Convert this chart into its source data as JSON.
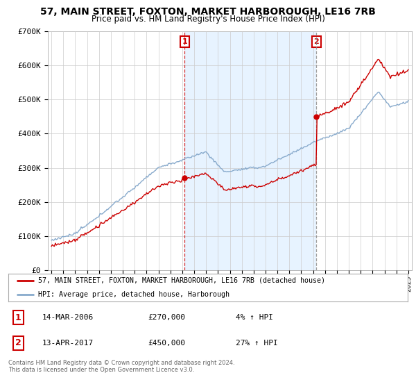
{
  "title": "57, MAIN STREET, FOXTON, MARKET HARBOROUGH, LE16 7RB",
  "subtitle": "Price paid vs. HM Land Registry's House Price Index (HPI)",
  "ylim": [
    0,
    700000
  ],
  "yticks": [
    0,
    100000,
    200000,
    300000,
    400000,
    500000,
    600000,
    700000
  ],
  "ytick_labels": [
    "£0",
    "£100K",
    "£200K",
    "£300K",
    "£400K",
    "£500K",
    "£600K",
    "£700K"
  ],
  "sale1_year": 2006.21,
  "sale1_price": 270000,
  "sale2_year": 2017.28,
  "sale2_price": 450000,
  "legend_line1": "57, MAIN STREET, FOXTON, MARKET HARBOROUGH, LE16 7RB (detached house)",
  "legend_line2": "HPI: Average price, detached house, Harborough",
  "annotation1_label": "1",
  "annotation1_date": "14-MAR-2006",
  "annotation1_price": "£270,000",
  "annotation1_hpi": "4% ↑ HPI",
  "annotation2_label": "2",
  "annotation2_date": "13-APR-2017",
  "annotation2_price": "£450,000",
  "annotation2_hpi": "27% ↑ HPI",
  "footer": "Contains HM Land Registry data © Crown copyright and database right 2024.\nThis data is licensed under the Open Government Licence v3.0.",
  "line_color_red": "#cc0000",
  "line_color_blue": "#88aacc",
  "shade_color": "#ddeeff",
  "plot_bg": "#ffffff",
  "grid_color": "#cccccc"
}
